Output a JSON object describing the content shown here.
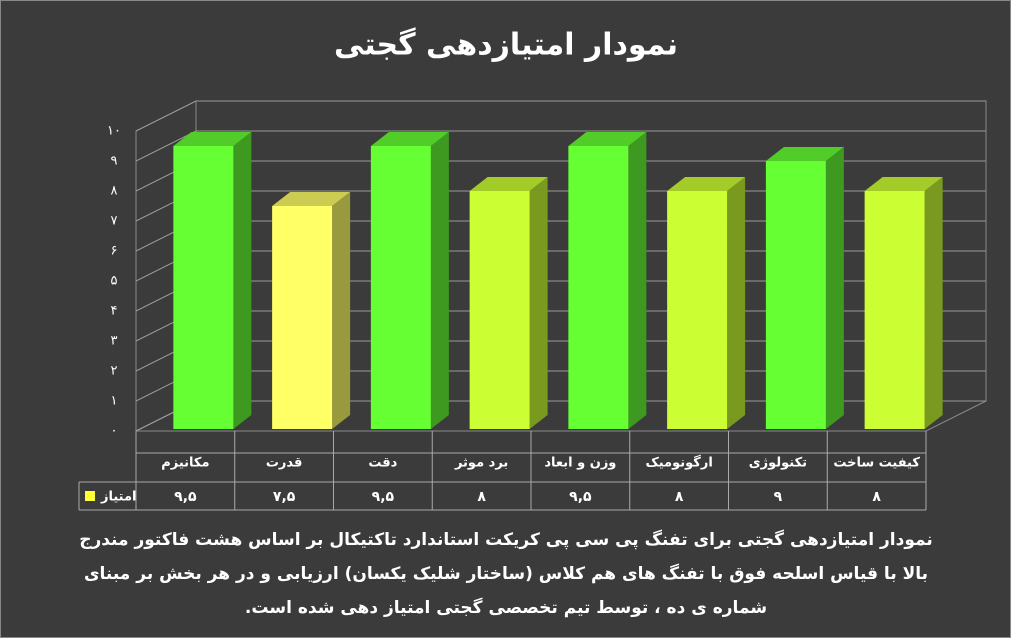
{
  "chart_data": {
    "type": "bar3d",
    "title": "نمودار امتیازدهی گجتی",
    "categories": [
      "مکانیزم",
      "قدرت",
      "دقت",
      "برد موثر",
      "وزن و ابعاد",
      "ارگونومیک",
      "تکنولوژی",
      "کیفیت ساخت"
    ],
    "series": [
      {
        "name": "امتیاز",
        "color": "#ffff33",
        "values": [
          9.5,
          7.5,
          9.5,
          8,
          9.5,
          8,
          9,
          8
        ],
        "value_labels": [
          "۹,۵",
          "۷,۵",
          "۹,۵",
          "۸",
          "۹,۵",
          "۸",
          "۹",
          "۸"
        ]
      }
    ],
    "bar_colors": [
      "#66ff33",
      "#ffff66",
      "#66ff33",
      "#ccff33",
      "#66ff33",
      "#ccff33",
      "#66ff33",
      "#ccff33"
    ],
    "ylim": [
      0,
      10
    ],
    "yticks": [
      {
        "value": 0,
        "label": "۰"
      },
      {
        "value": 1,
        "label": "۱"
      },
      {
        "value": 2,
        "label": "۲"
      },
      {
        "value": 3,
        "label": "۳"
      },
      {
        "value": 4,
        "label": "۴"
      },
      {
        "value": 5,
        "label": "۵"
      },
      {
        "value": 6,
        "label": "۶"
      },
      {
        "value": 7,
        "label": "۷"
      },
      {
        "value": 8,
        "label": "۸"
      },
      {
        "value": 9,
        "label": "۹"
      },
      {
        "value": 10,
        "label": "۱۰"
      }
    ],
    "grid": true
  },
  "caption": [
    "نمودار امتیازدهی گجتی برای تفنگ پی سی پی کریکت استاندارد تاکتیکال بر اساس هشت فاکتور مندرج",
    "بالا با قیاس اسلحه فوق با تفنگ های هم کلاس (ساختار شلیک یکسان) ارزیابی و در هر بخش بر مبنای",
    "شماره ی ده ، توسط تیم تخصصی گجتی امتیاز دهی شده است."
  ]
}
